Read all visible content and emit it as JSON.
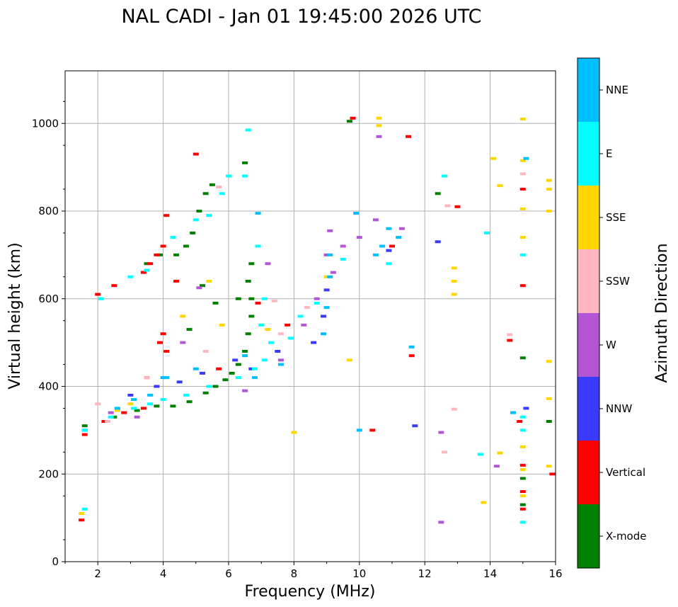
{
  "chart_data": {
    "type": "scatter",
    "title": "NAL CADI - Jan 01 19:45:00 2026 UTC",
    "xlabel": "Frequency (MHz)",
    "ylabel": "Virtual height (km)",
    "xlim": [
      1,
      16
    ],
    "ylim": [
      0,
      1120
    ],
    "xticks": [
      "2",
      "4",
      "6",
      "8",
      "10",
      "12",
      "14",
      "16"
    ],
    "yticks": [
      "0",
      "200",
      "400",
      "600",
      "800",
      "1000"
    ],
    "grid": true,
    "colorbar": {
      "title": "Azimuth Direction",
      "categories": [
        {
          "label": "X-mode",
          "color": "#008000"
        },
        {
          "label": "Vertical",
          "color": "#ff0000"
        },
        {
          "label": "NNW",
          "color": "#3a3aff"
        },
        {
          "label": "W",
          "color": "#b455d6"
        },
        {
          "label": "SSW",
          "color": "#ffb6c1"
        },
        {
          "label": "SSE",
          "color": "#ffd700"
        },
        {
          "label": "E",
          "color": "#00ffff"
        },
        {
          "label": "NNE",
          "color": "#00bfff"
        }
      ]
    },
    "series": [
      {
        "name": "X-mode",
        "points": [
          [
            1.6,
            310
          ],
          [
            2.5,
            330
          ],
          [
            3.2,
            345
          ],
          [
            3.8,
            355
          ],
          [
            4.3,
            355
          ],
          [
            4.8,
            365
          ],
          [
            5.3,
            385
          ],
          [
            5.6,
            400
          ],
          [
            5.9,
            415
          ],
          [
            6.1,
            430
          ],
          [
            6.3,
            450
          ],
          [
            6.5,
            480
          ],
          [
            6.6,
            520
          ],
          [
            6.7,
            560
          ],
          [
            6.7,
            600
          ],
          [
            6.6,
            640
          ],
          [
            6.7,
            680
          ],
          [
            6.3,
            600
          ],
          [
            4.4,
            700
          ],
          [
            4.7,
            720
          ],
          [
            4.9,
            750
          ],
          [
            5.1,
            800
          ],
          [
            5.3,
            840
          ],
          [
            5.5,
            860
          ],
          [
            6.5,
            910
          ],
          [
            5.2,
            630
          ],
          [
            5.6,
            590
          ],
          [
            4.8,
            530
          ],
          [
            12.4,
            840
          ],
          [
            15,
            130
          ],
          [
            15,
            190
          ],
          [
            15,
            465
          ],
          [
            15.8,
            320
          ],
          [
            9.7,
            1005
          ],
          [
            3.9,
            700
          ],
          [
            3.5,
            680
          ]
        ]
      },
      {
        "name": "Vertical",
        "points": [
          [
            1.5,
            95
          ],
          [
            1.6,
            290
          ],
          [
            2.2,
            320
          ],
          [
            2.8,
            340
          ],
          [
            3.4,
            350
          ],
          [
            3.5,
            420
          ],
          [
            4.0,
            520
          ],
          [
            4.1,
            480
          ],
          [
            3.9,
            500
          ],
          [
            4.1,
            790
          ],
          [
            4.0,
            720
          ],
          [
            3.8,
            700
          ],
          [
            3.6,
            680
          ],
          [
            3.4,
            660
          ],
          [
            2.5,
            630
          ],
          [
            5.0,
            930
          ],
          [
            5.7,
            440
          ],
          [
            6.9,
            590
          ],
          [
            7.8,
            540
          ],
          [
            9.8,
            1012
          ],
          [
            10.4,
            300
          ],
          [
            11.0,
            720
          ],
          [
            11.5,
            970
          ],
          [
            11.6,
            470
          ],
          [
            13.0,
            810
          ],
          [
            14.6,
            505
          ],
          [
            14.9,
            320
          ],
          [
            15,
            630
          ],
          [
            15,
            850
          ],
          [
            15,
            220
          ],
          [
            15,
            160
          ],
          [
            15,
            120
          ],
          [
            15.9,
            200
          ],
          [
            2.0,
            610
          ],
          [
            4.4,
            640
          ]
        ]
      },
      {
        "name": "NNW",
        "points": [
          [
            3.0,
            380
          ],
          [
            3.8,
            400
          ],
          [
            4.5,
            410
          ],
          [
            5.2,
            430
          ],
          [
            6.2,
            460
          ],
          [
            8.6,
            500
          ],
          [
            8.9,
            560
          ],
          [
            9.0,
            620
          ],
          [
            10.9,
            710
          ],
          [
            12.4,
            730
          ],
          [
            6.7,
            440
          ],
          [
            7.5,
            480
          ],
          [
            1.6,
            300
          ],
          [
            11.7,
            310
          ],
          [
            15.1,
            350
          ]
        ]
      },
      {
        "name": "W",
        "points": [
          [
            2.4,
            340
          ],
          [
            3.2,
            330
          ],
          [
            4.6,
            500
          ],
          [
            6.5,
            390
          ],
          [
            7.6,
            460
          ],
          [
            8.3,
            540
          ],
          [
            8.7,
            600
          ],
          [
            9.0,
            700
          ],
          [
            9.2,
            660
          ],
          [
            9.5,
            720
          ],
          [
            10.0,
            740
          ],
          [
            10.5,
            780
          ],
          [
            10.6,
            970
          ],
          [
            11.3,
            760
          ],
          [
            12.5,
            295
          ],
          [
            12.5,
            90
          ],
          [
            14.2,
            218
          ],
          [
            5.1,
            625
          ],
          [
            7.2,
            680
          ],
          [
            9.1,
            755
          ]
        ]
      },
      {
        "name": "SSW",
        "points": [
          [
            2.3,
            320
          ],
          [
            3.5,
            420
          ],
          [
            5.3,
            480
          ],
          [
            7.6,
            520
          ],
          [
            8.4,
            580
          ],
          [
            12.6,
            250
          ],
          [
            12.9,
            348
          ],
          [
            12.7,
            812
          ],
          [
            14.6,
            518
          ],
          [
            15,
            885
          ],
          [
            2.0,
            360
          ],
          [
            5.7,
            855
          ],
          [
            7.4,
            595
          ]
        ]
      },
      {
        "name": "SSE",
        "points": [
          [
            1.5,
            110
          ],
          [
            2.6,
            345
          ],
          [
            3.0,
            360
          ],
          [
            4.6,
            560
          ],
          [
            5.4,
            640
          ],
          [
            5.8,
            540
          ],
          [
            7.2,
            530
          ],
          [
            8.0,
            295
          ],
          [
            9.0,
            650
          ],
          [
            9.7,
            460
          ],
          [
            10.6,
            1012
          ],
          [
            10.6,
            995
          ],
          [
            12.9,
            670
          ],
          [
            12.9,
            640
          ],
          [
            12.9,
            610
          ],
          [
            13.8,
            135
          ],
          [
            14.1,
            920
          ],
          [
            14.3,
            858
          ],
          [
            14.3,
            248
          ],
          [
            15,
            1010
          ],
          [
            15,
            915
          ],
          [
            15,
            805
          ],
          [
            15,
            740
          ],
          [
            15,
            262
          ],
          [
            15,
            210
          ],
          [
            15,
            150
          ],
          [
            15.8,
            870
          ],
          [
            15.8,
            850
          ],
          [
            15.8,
            800
          ],
          [
            15.8,
            457
          ],
          [
            15.8,
            372
          ],
          [
            15.8,
            218
          ]
        ]
      },
      {
        "name": "E",
        "points": [
          [
            1.6,
            120
          ],
          [
            1.6,
            300
          ],
          [
            2.4,
            330
          ],
          [
            3.1,
            350
          ],
          [
            3.6,
            360
          ],
          [
            4.0,
            370
          ],
          [
            4.7,
            380
          ],
          [
            5.4,
            400
          ],
          [
            6.3,
            420
          ],
          [
            6.8,
            440
          ],
          [
            7.1,
            460
          ],
          [
            7.3,
            500
          ],
          [
            7.9,
            510
          ],
          [
            8.2,
            560
          ],
          [
            8.7,
            590
          ],
          [
            9.5,
            690
          ],
          [
            2.1,
            600
          ],
          [
            3.0,
            650
          ],
          [
            3.5,
            665
          ],
          [
            4.3,
            740
          ],
          [
            5.0,
            780
          ],
          [
            5.4,
            790
          ],
          [
            5.8,
            840
          ],
          [
            6.0,
            880
          ],
          [
            6.5,
            880
          ],
          [
            6.6,
            985
          ],
          [
            6.9,
            720
          ],
          [
            7.0,
            540
          ],
          [
            7.1,
            600
          ],
          [
            12.6,
            880
          ],
          [
            13.7,
            245
          ],
          [
            13.9,
            750
          ],
          [
            15,
            300
          ],
          [
            15,
            330
          ],
          [
            15,
            90
          ],
          [
            15,
            700
          ],
          [
            10.9,
            680
          ]
        ]
      },
      {
        "name": "NNE",
        "points": [
          [
            2.6,
            350
          ],
          [
            3.6,
            380
          ],
          [
            4.1,
            420
          ],
          [
            5.0,
            440
          ],
          [
            6.5,
            470
          ],
          [
            6.8,
            420
          ],
          [
            7.6,
            450
          ],
          [
            8.9,
            520
          ],
          [
            9.0,
            580
          ],
          [
            9.1,
            650
          ],
          [
            9.1,
            700
          ],
          [
            10.0,
            300
          ],
          [
            10.5,
            700
          ],
          [
            10.7,
            720
          ],
          [
            10.9,
            760
          ],
          [
            11.2,
            740
          ],
          [
            11.6,
            490
          ],
          [
            14.7,
            340
          ],
          [
            15.1,
            920
          ],
          [
            4.0,
            420
          ],
          [
            6.9,
            795
          ],
          [
            9.9,
            795
          ],
          [
            3.1,
            370
          ]
        ]
      }
    ]
  }
}
